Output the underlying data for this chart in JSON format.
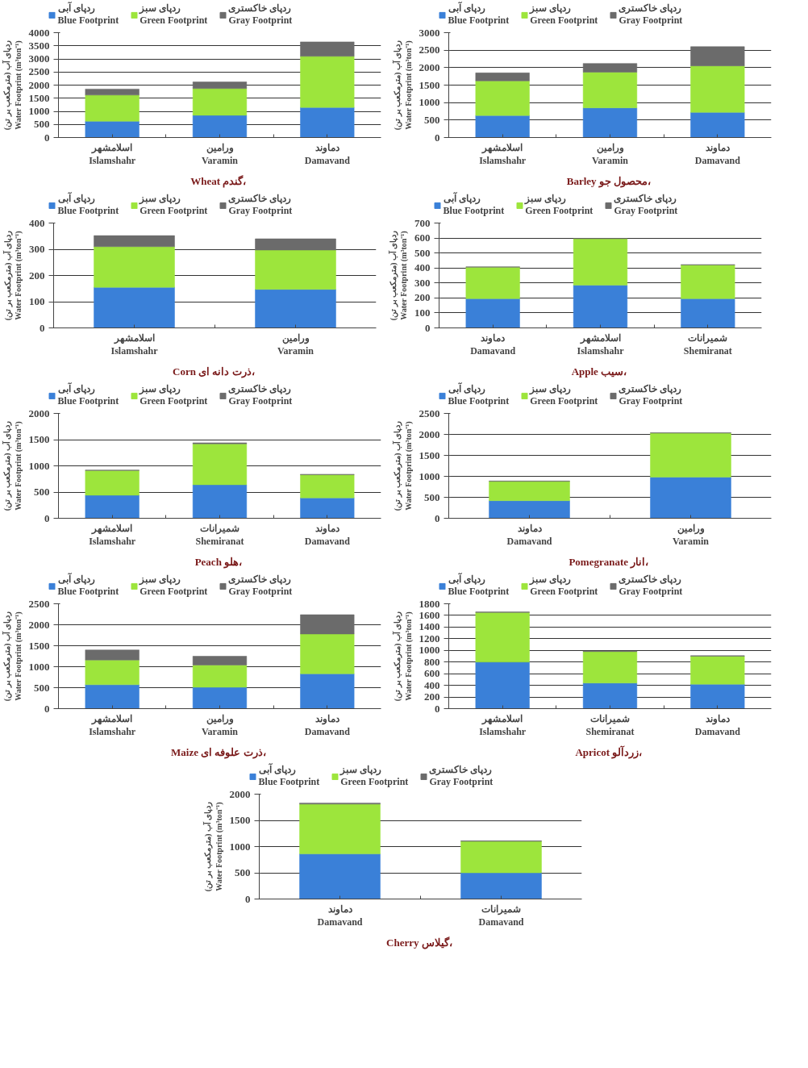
{
  "chart_data": [
    {
      "type": "bar",
      "stacked": true,
      "title": "Wheat  گندم،",
      "ylabel": "ردپای آب (مترمکعب بر تن)\nWater Footprint (m³ton⁻¹)",
      "categories": [
        "اسلامشهر\nIslamshahr",
        "ورامین\nVaramin",
        "دماوند\nDamavand"
      ],
      "ylim": [
        0,
        4000
      ],
      "yticks": [
        0,
        500,
        1000,
        1500,
        2000,
        2500,
        3000,
        3500,
        4000
      ],
      "grid": "y",
      "legend": "top",
      "series": [
        {
          "name": "ردپای آبی\nBlue Footprint",
          "color": "#3a80d8",
          "values": [
            620,
            850,
            1150
          ]
        },
        {
          "name": "ردپای سبز\nGreen Footprint",
          "color": "#9de53c",
          "values": [
            1000,
            1020,
            1950
          ]
        },
        {
          "name": "ردپای خاکستری\nGray Footprint",
          "color": "#6b6b6b",
          "values": [
            230,
            250,
            550
          ]
        }
      ]
    },
    {
      "type": "bar",
      "stacked": true,
      "title": "Barley  محصول جو،",
      "ylabel": "ردپای آب (مترمکعب بر تن)\nWater Footprint (m³ton⁻¹)",
      "categories": [
        "اسلامشهر\nIslamshahr",
        "ورامین\nVaramin",
        "دماوند\nDamavand"
      ],
      "ylim": [
        0,
        3000
      ],
      "yticks": [
        0,
        500,
        1000,
        1500,
        2000,
        2500,
        3000
      ],
      "grid": "y",
      "legend": "top",
      "series": [
        {
          "name": "ردپای آبی\nBlue Footprint",
          "color": "#3a80d8",
          "values": [
            630,
            850,
            720
          ]
        },
        {
          "name": "ردپای سبز\nGreen Footprint",
          "color": "#9de53c",
          "values": [
            990,
            1020,
            1330
          ]
        },
        {
          "name": "ردپای خاکستری\nGray Footprint",
          "color": "#6b6b6b",
          "values": [
            230,
            250,
            550
          ]
        }
      ]
    },
    {
      "type": "bar",
      "stacked": true,
      "title": "Corn  ذرت دانه ای،",
      "ylabel": "ردپای آب (مترمکعب بر تن)\nWater Footprint (m³ton⁻¹)",
      "categories": [
        "اسلامشهر\nIslamshahr",
        "ورامین\nVaramin"
      ],
      "ylim": [
        0,
        400
      ],
      "yticks": [
        0,
        100,
        200,
        300,
        400
      ],
      "grid": "y",
      "legend": "top",
      "series": [
        {
          "name": "ردپای آبی\nBlue Footprint",
          "color": "#3a80d8",
          "values": [
            155,
            147
          ]
        },
        {
          "name": "ردپای سبز\nGreen Footprint",
          "color": "#9de53c",
          "values": [
            155,
            150
          ]
        },
        {
          "name": "ردپای خاکستری\nGray Footprint",
          "color": "#6b6b6b",
          "values": [
            42,
            43
          ]
        }
      ]
    },
    {
      "type": "bar",
      "stacked": true,
      "title": "Apple  سیب،",
      "ylabel": "ردپای آب (مترمکعب بر تن)\nWater Footprint (m³ton⁻¹)",
      "categories": [
        "دماوند\nDamavand",
        "اسلامشهر\nIslamshahr",
        "شمیرانات\nShemiranat"
      ],
      "ylim": [
        0,
        700
      ],
      "yticks": [
        0,
        100,
        200,
        300,
        400,
        500,
        600,
        700
      ],
      "grid": "y",
      "legend": "top",
      "series": [
        {
          "name": "ردپای آبی\nBlue Footprint",
          "color": "#3a80d8",
          "values": [
            195,
            285,
            195
          ]
        },
        {
          "name": "ردپای سبز\nGreen Footprint",
          "color": "#9de53c",
          "values": [
            210,
            310,
            225
          ]
        },
        {
          "name": "ردپای خاکستری\nGray Footprint",
          "color": "#6b6b6b",
          "values": [
            3,
            3,
            3
          ]
        }
      ]
    },
    {
      "type": "bar",
      "stacked": true,
      "title": "Peach  هلو،",
      "ylabel": "ردپای آب (مترمکعب بر تن)\nWater Footprint (m³ton⁻¹)",
      "categories": [
        "اسلامشهر\nIslamshahr",
        "شمیرانات\nShemiranat",
        "دماوند\nDamavand"
      ],
      "ylim": [
        0,
        2000
      ],
      "yticks": [
        0,
        500,
        1000,
        1500,
        2000
      ],
      "grid": "y",
      "legend": "top",
      "series": [
        {
          "name": "ردپای آبی\nBlue Footprint",
          "color": "#3a80d8",
          "values": [
            440,
            640,
            390
          ]
        },
        {
          "name": "ردپای سبز\nGreen Footprint",
          "color": "#9de53c",
          "values": [
            470,
            780,
            440
          ]
        },
        {
          "name": "ردپای خاکستری\nGray Footprint",
          "color": "#6b6b6b",
          "values": [
            10,
            20,
            10
          ]
        }
      ]
    },
    {
      "type": "bar",
      "stacked": true,
      "title": "Pomegranate  انار،",
      "ylabel": "ردپای آب (مترمکعب بر تن)\nWater Footprint (m³ton⁻¹)",
      "categories": [
        "دماوند\nDamavand",
        "ورامین\nVaramin"
      ],
      "ylim": [
        0,
        2500
      ],
      "yticks": [
        0,
        500,
        1000,
        1500,
        2000,
        2500
      ],
      "grid": "y",
      "legend": "top",
      "series": [
        {
          "name": "ردپای آبی\nBlue Footprint",
          "color": "#3a80d8",
          "values": [
            420,
            980
          ]
        },
        {
          "name": "ردپای سبز\nGreen Footprint",
          "color": "#9de53c",
          "values": [
            460,
            1050
          ]
        },
        {
          "name": "ردپای خاکستری\nGray Footprint",
          "color": "#6b6b6b",
          "values": [
            10,
            10
          ]
        }
      ]
    },
    {
      "type": "bar",
      "stacked": true,
      "title": "Maize  ذرت علوفه ای،",
      "ylabel": "ردپای آب (مترمکعب بر تن)\nWater Footprint (m³ton⁻¹)",
      "categories": [
        "اسلامشهر\nIslamshahr",
        "ورامین\nVaramin",
        "دماوند\nDamavand"
      ],
      "ylim": [
        0,
        2500
      ],
      "yticks": [
        0,
        500,
        1000,
        1500,
        2000,
        2500
      ],
      "grid": "y",
      "legend": "top",
      "series": [
        {
          "name": "ردپای آبی\nBlue Footprint",
          "color": "#3a80d8",
          "values": [
            570,
            510,
            830
          ]
        },
        {
          "name": "ردپای سبز\nGreen Footprint",
          "color": "#9de53c",
          "values": [
            590,
            530,
            950
          ]
        },
        {
          "name": "ردپای خاکستری\nGray Footprint",
          "color": "#6b6b6b",
          "values": [
            240,
            210,
            460
          ]
        }
      ]
    },
    {
      "type": "bar",
      "stacked": true,
      "title": "Apricot  زردآلو،",
      "ylabel": "ردپای آب (مترمکعب بر تن)\nWater Footprint (m³ton⁻¹)",
      "categories": [
        "اسلامشهر\nIslamshahr",
        "شمیرانات\nShemiranat",
        "دماوند\nDamavand"
      ],
      "ylim": [
        0,
        1800
      ],
      "yticks": [
        0,
        200,
        400,
        600,
        800,
        1000,
        1200,
        1400,
        1600,
        1800
      ],
      "grid": "y",
      "legend": "top",
      "series": [
        {
          "name": "ردپای آبی\nBlue Footprint",
          "color": "#3a80d8",
          "values": [
            800,
            440,
            420
          ]
        },
        {
          "name": "ردپای سبز\nGreen Footprint",
          "color": "#9de53c",
          "values": [
            850,
            540,
            480
          ]
        },
        {
          "name": "ردپای خاکستری\nGray Footprint",
          "color": "#6b6b6b",
          "values": [
            10,
            10,
            10
          ]
        }
      ]
    },
    {
      "type": "bar",
      "stacked": true,
      "title": "Cherry  گیلاس،",
      "ylabel": "ردپای آب (مترمکعب بر تن)\nWater Footprint (m³ton⁻¹)",
      "categories": [
        "دماوند\nDamavand",
        "شمیرانات\nDamavand"
      ],
      "ylim": [
        0,
        2000
      ],
      "yticks": [
        0,
        500,
        1000,
        1500,
        2000
      ],
      "grid": "y",
      "legend": "top",
      "series": [
        {
          "name": "ردپای آبی\nBlue Footprint",
          "color": "#3a80d8",
          "values": [
            860,
            500
          ]
        },
        {
          "name": "ردپای سبز\nGreen Footprint",
          "color": "#9de53c",
          "values": [
            950,
            600
          ]
        },
        {
          "name": "ردپای خاکستری\nGray Footprint",
          "color": "#6b6b6b",
          "values": [
            20,
            10
          ]
        }
      ]
    }
  ]
}
